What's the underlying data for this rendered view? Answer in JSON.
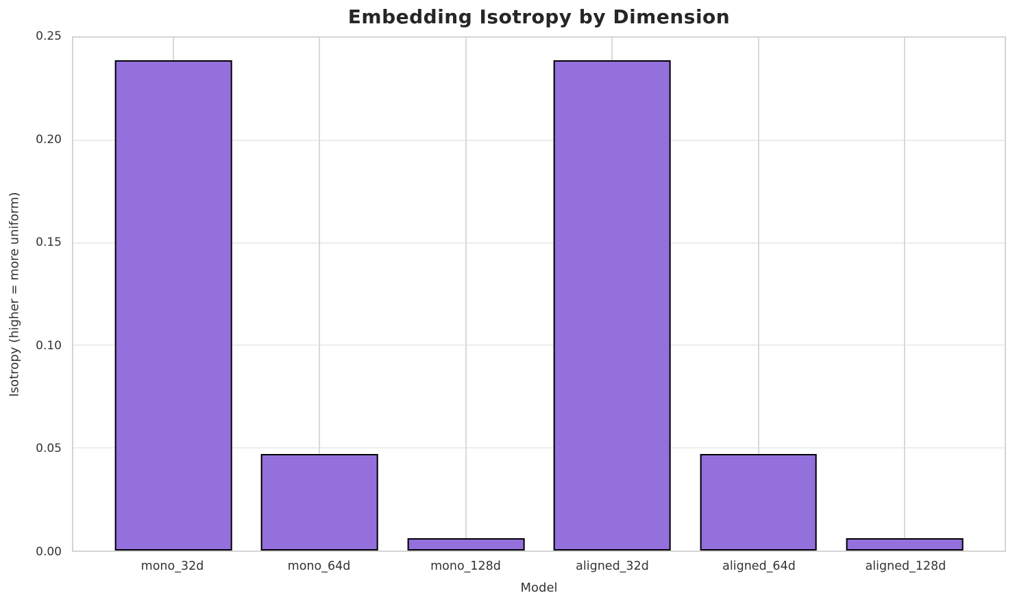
{
  "header": {
    "title": "Embedding Isotropy by Dimension"
  },
  "axes": {
    "xlabel": "Model",
    "ylabel": "Isotropy (higher = more uniform)"
  },
  "colors": {
    "bar_fill": "#9370DB",
    "bar_edge": "#000000",
    "h_grid": "#ececec",
    "v_grid": "#d9d9d9",
    "spine": "#d4d4d4",
    "title_text": "#262626",
    "tick_text": "#333333"
  },
  "chart_data": {
    "type": "bar",
    "title": "Embedding Isotropy by Dimension",
    "xlabel": "Model",
    "ylabel": "Isotropy (higher = more uniform)",
    "categories": [
      "mono_32d",
      "mono_64d",
      "mono_128d",
      "aligned_32d",
      "aligned_64d",
      "aligned_128d"
    ],
    "values": [
      0.239,
      0.047,
      0.006,
      0.239,
      0.047,
      0.006
    ],
    "ylim": [
      0,
      0.25
    ],
    "yticks": [
      "0.00",
      "0.05",
      "0.10",
      "0.15",
      "0.20",
      "0.25"
    ],
    "grid": "both",
    "legend": false,
    "bar_relative_width": 0.8
  }
}
